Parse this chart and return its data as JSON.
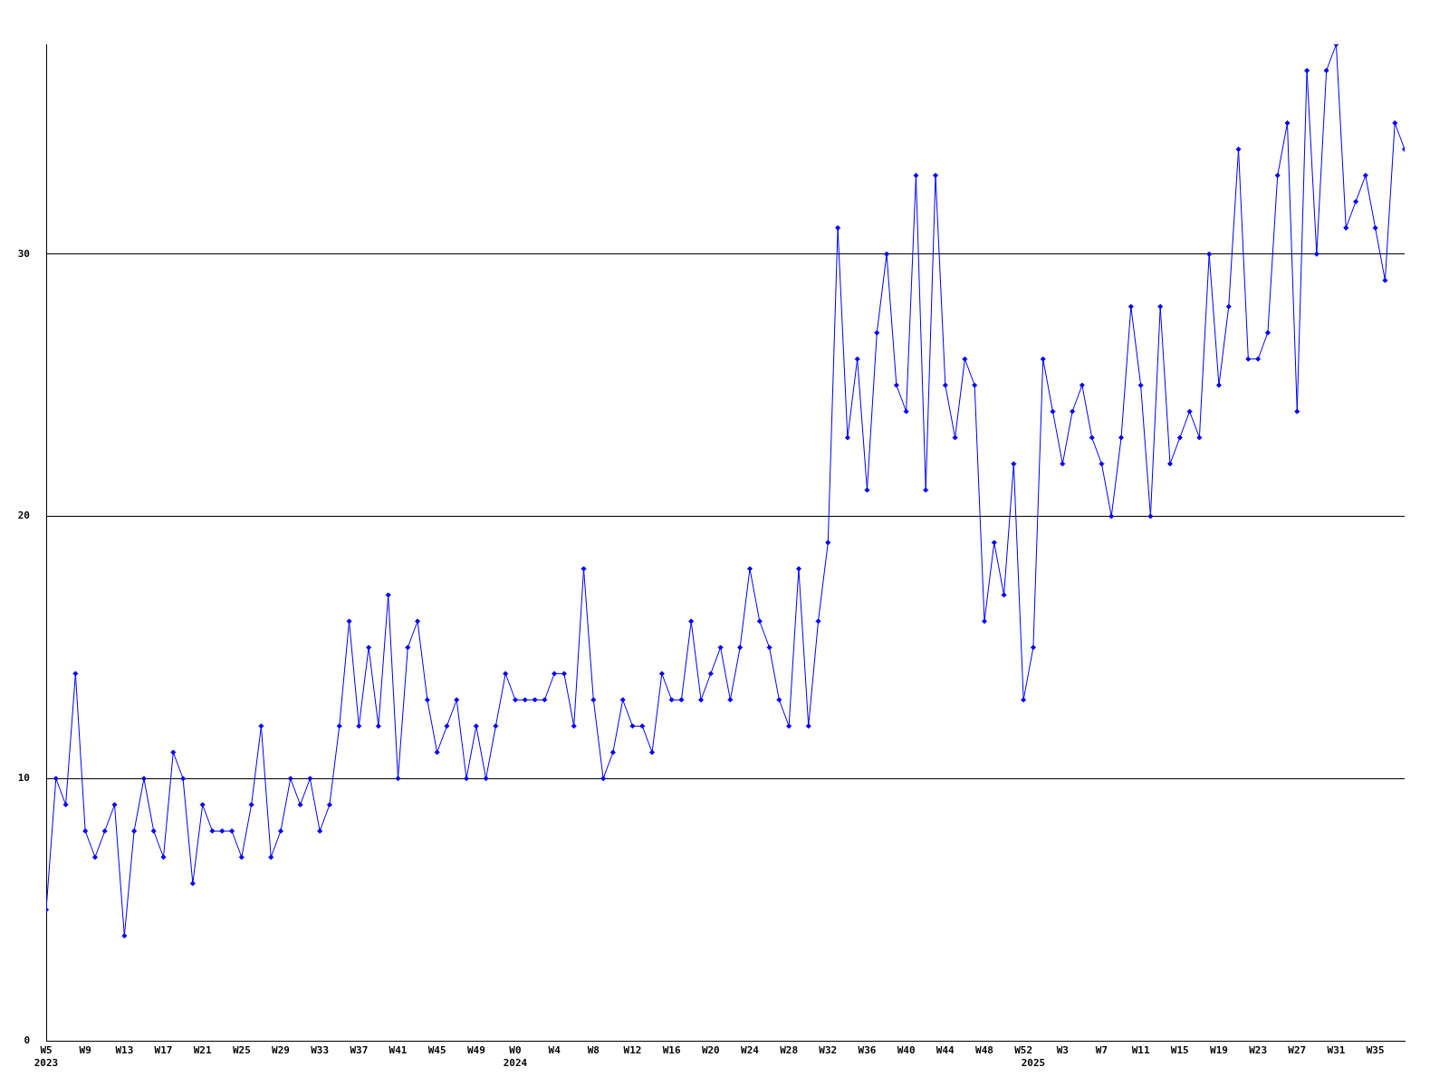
{
  "chart_data": {
    "type": "line",
    "categories": [
      "W5\n2023",
      null,
      null,
      null,
      "W9",
      null,
      null,
      null,
      "W13",
      null,
      null,
      null,
      "W17",
      null,
      null,
      null,
      "W21",
      null,
      null,
      null,
      "W25",
      null,
      null,
      null,
      "W29",
      null,
      null,
      null,
      "W33",
      null,
      null,
      null,
      "W37",
      null,
      null,
      null,
      "W41",
      null,
      null,
      null,
      "W45",
      null,
      null,
      null,
      "W49",
      null,
      null,
      null,
      "W0\n2024",
      null,
      null,
      null,
      "W4",
      null,
      null,
      null,
      "W8",
      null,
      null,
      null,
      "W12",
      null,
      null,
      null,
      "W16",
      null,
      null,
      null,
      "W20",
      null,
      null,
      null,
      "W24",
      null,
      null,
      null,
      "W28",
      null,
      null,
      null,
      "W32",
      null,
      null,
      null,
      "W36",
      null,
      null,
      null,
      "W40",
      null,
      null,
      null,
      "W44",
      null,
      null,
      null,
      "W48",
      null,
      null,
      null,
      "W52",
      "\n2025",
      null,
      null,
      "W3",
      null,
      null,
      null,
      "W7",
      null,
      null,
      null,
      "W11",
      null,
      null,
      null,
      "W15",
      null,
      null,
      null,
      "W19",
      null,
      null,
      null,
      "W23",
      null,
      null,
      null,
      "W27",
      null,
      null,
      null,
      "W31",
      null,
      null,
      null,
      "W35",
      null,
      null,
      null
    ],
    "series": [
      {
        "color": "#0000ff",
        "values": [
          5,
          10,
          9,
          14,
          8,
          7,
          8,
          9,
          4,
          8,
          10,
          8,
          7,
          11,
          10,
          6,
          9,
          8,
          8,
          8,
          7,
          9,
          12,
          7,
          8,
          10,
          9,
          10,
          8,
          9,
          12,
          16,
          12,
          15,
          12,
          17,
          10,
          15,
          16,
          13,
          11,
          12,
          13,
          10,
          12,
          10,
          12,
          14,
          13,
          13,
          13,
          13,
          14,
          14,
          12,
          18,
          13,
          10,
          11,
          13,
          12,
          12,
          11,
          14,
          13,
          13,
          16,
          13,
          14,
          15,
          13,
          15,
          18,
          16,
          15,
          13,
          12,
          18,
          12,
          16,
          19,
          31,
          23,
          26,
          21,
          27,
          30,
          25,
          24,
          33,
          21,
          33,
          25,
          23,
          26,
          25,
          16,
          19,
          17,
          22,
          13,
          15,
          26,
          24,
          22,
          24,
          25,
          23,
          22,
          20,
          23,
          28,
          25,
          20,
          28,
          22,
          23,
          24,
          23,
          30,
          25,
          28,
          34,
          26,
          26,
          27,
          33,
          35,
          24,
          37,
          30,
          37,
          38,
          31,
          32,
          33,
          31,
          29,
          35,
          34
        ]
      }
    ],
    "ylim": [
      0,
      38
    ],
    "yticks": [
      0,
      10,
      20,
      30
    ],
    "grid": "y",
    "legend": false,
    "marker": "diamond",
    "line_style": "solid"
  }
}
